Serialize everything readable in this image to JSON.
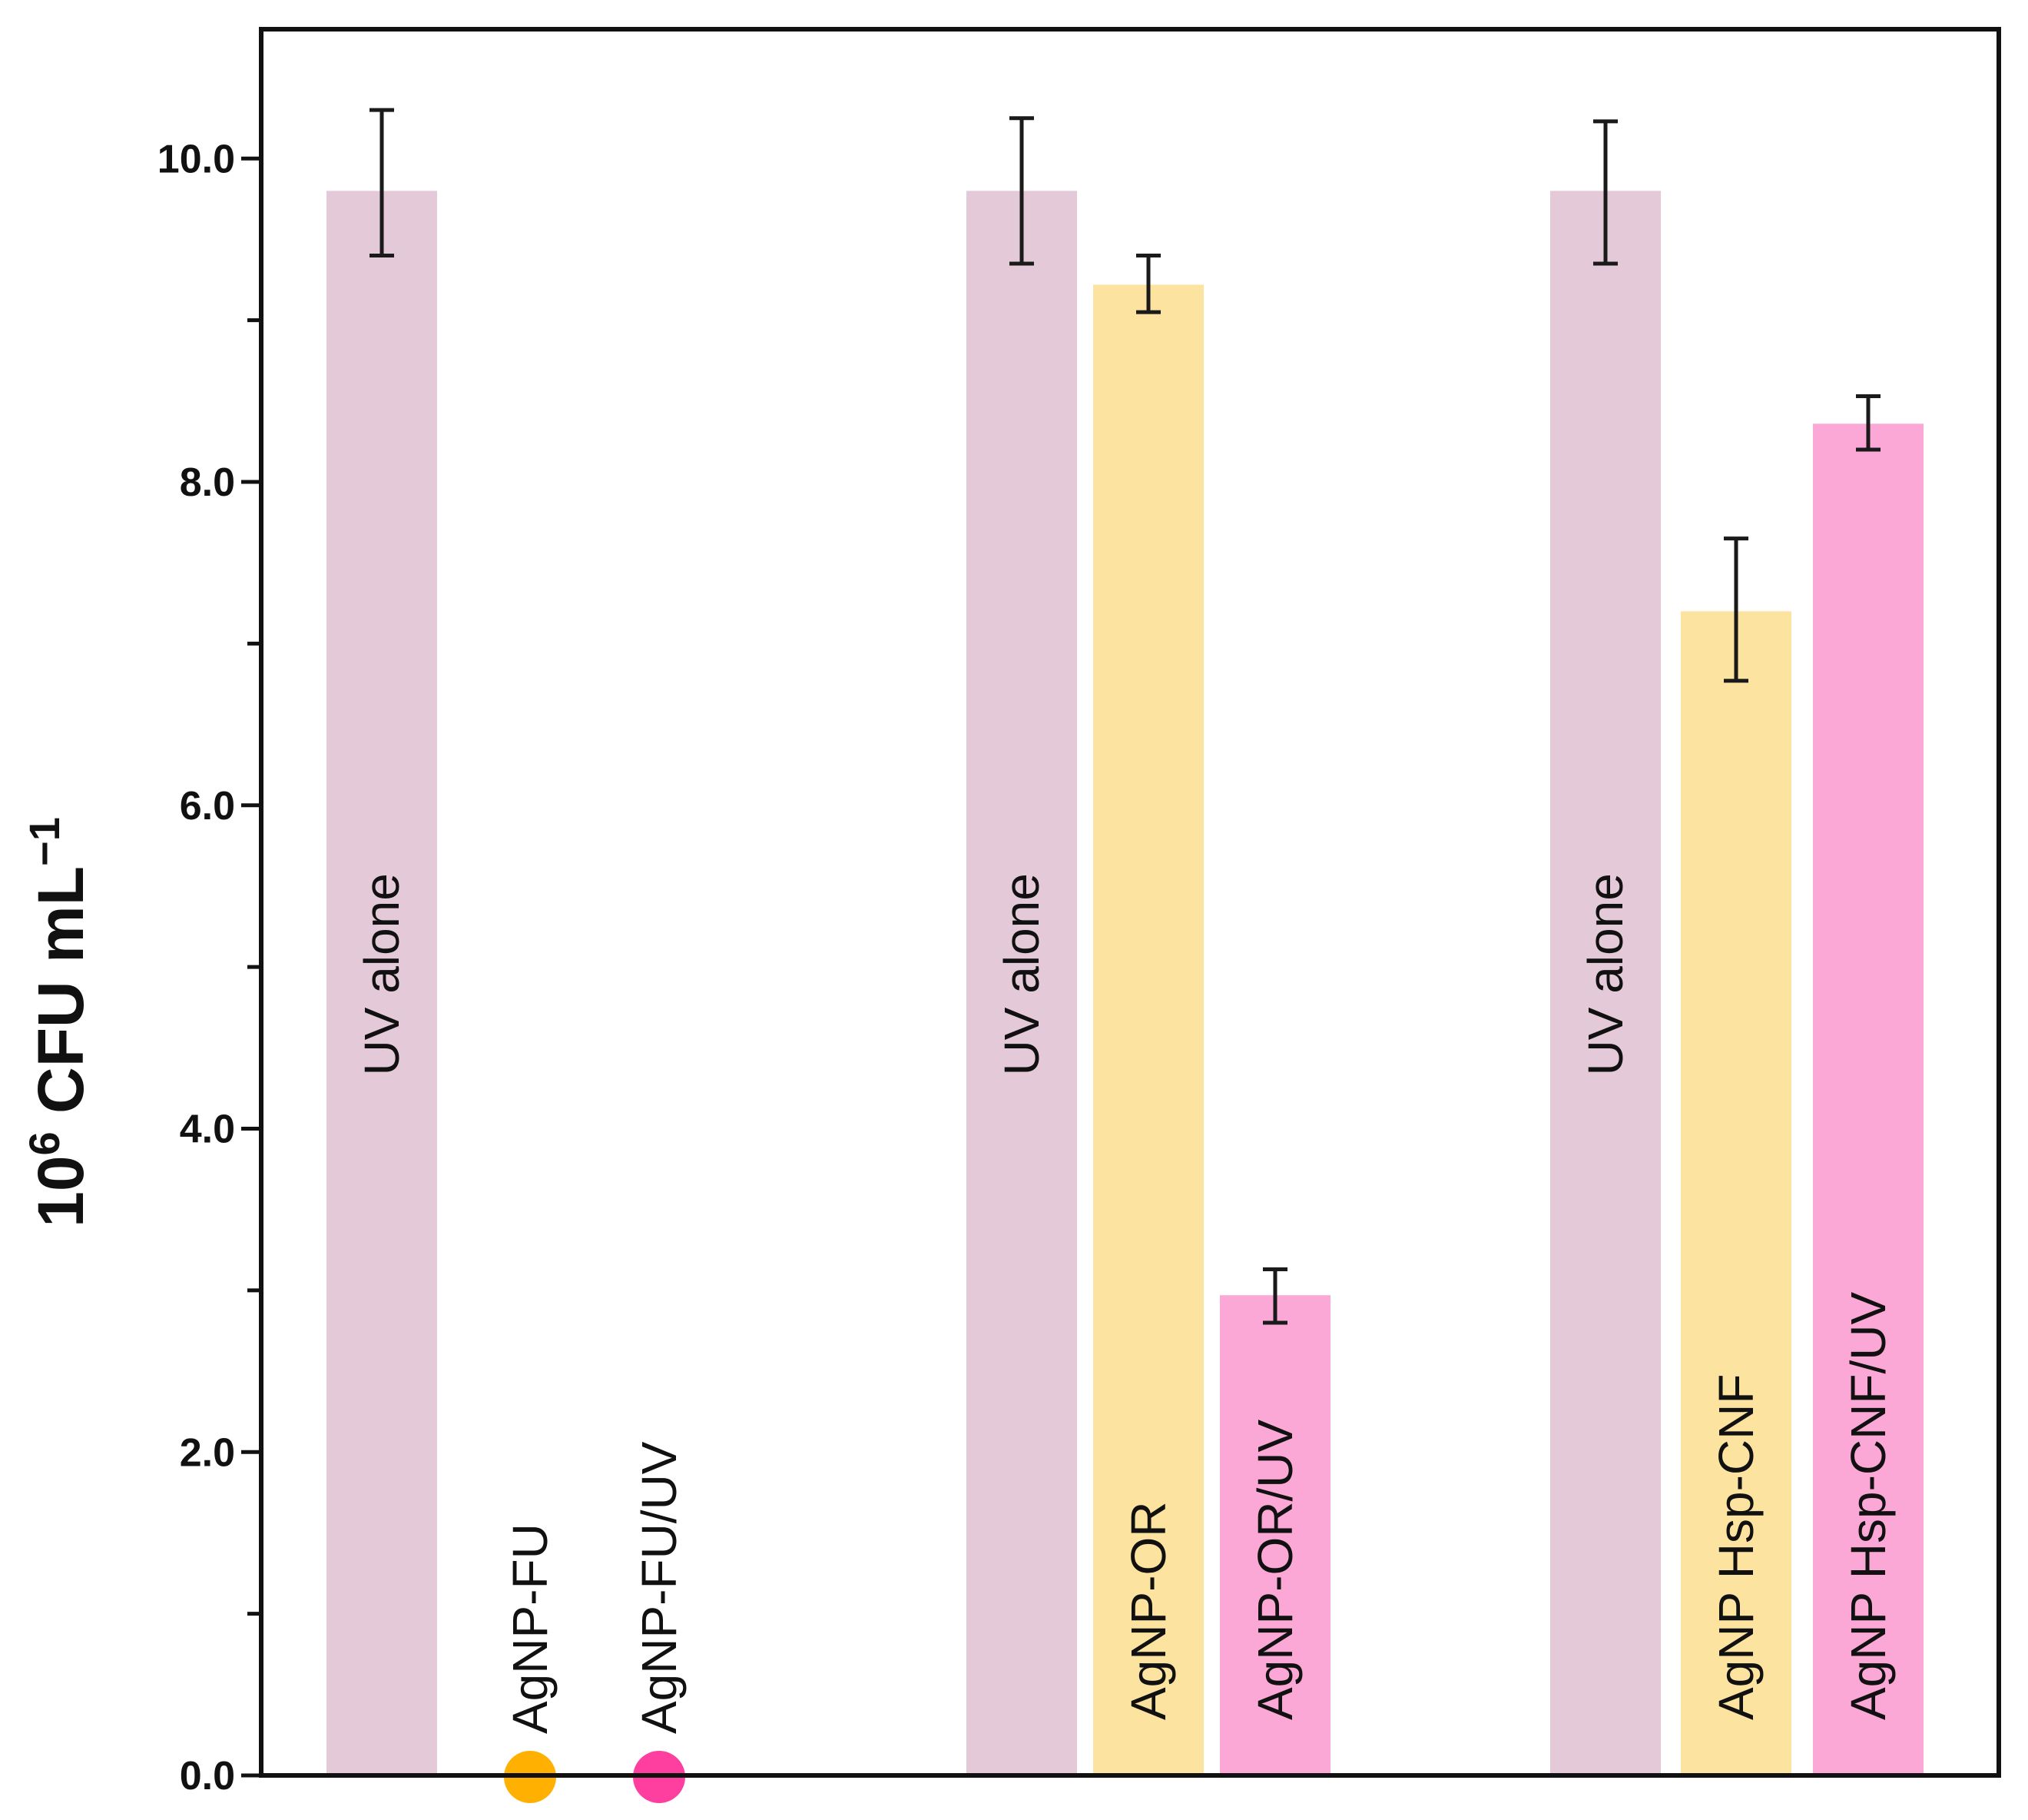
{
  "chart_data": {
    "type": "bar",
    "ylabel": {
      "base": "10",
      "exponent": "6",
      "unit_text": " CFU mL",
      "unit_exponent": "−1"
    },
    "ylim": [
      0,
      10.8
    ],
    "yticks_labeled": [
      {
        "value": 0,
        "label": "0.0"
      },
      {
        "value": 2,
        "label": "2.0"
      },
      {
        "value": 4,
        "label": "4.0"
      },
      {
        "value": 6,
        "label": "6.0"
      },
      {
        "value": 8,
        "label": "8.0"
      },
      {
        "value": 10,
        "label": "10.0"
      }
    ],
    "yticks_minor": [
      1,
      3,
      5,
      7,
      9
    ],
    "grid": false,
    "colors": {
      "uv_alone": "#e4c9d8",
      "agnp": "#fce3a0",
      "agnp_uv": "#fba8d6",
      "marker_agnp": "#ffb000",
      "marker_agnp_uv": "#ff3fa0",
      "axis": "#111111"
    },
    "bars": [
      {
        "label": "UV alone",
        "value": 9.8,
        "error_low": 9.4,
        "error_high": 10.3,
        "color_key": "uv_alone",
        "label_pos": "middle"
      },
      {
        "label": "AgNP-FU",
        "value": 0,
        "error_low": null,
        "error_high": null,
        "color_key": "marker_agnp",
        "marker": true
      },
      {
        "label": "AgNP-FU/UV",
        "value": 0,
        "error_low": null,
        "error_high": null,
        "color_key": "marker_agnp_uv",
        "marker": true
      },
      {
        "label": "UV alone",
        "value": 9.8,
        "error_low": 9.35,
        "error_high": 10.25,
        "color_key": "uv_alone",
        "label_pos": "middle"
      },
      {
        "label": "AgNP-OR",
        "value": 9.22,
        "error_low": 9.05,
        "error_high": 9.4,
        "color_key": "agnp",
        "label_pos": "bottom"
      },
      {
        "label": "AgNP-OR/UV",
        "value": 2.97,
        "error_low": 2.8,
        "error_high": 3.13,
        "color_key": "agnp_uv",
        "label_pos": "bottom"
      },
      {
        "label": "UV alone",
        "value": 9.8,
        "error_low": 9.35,
        "error_high": 10.23,
        "color_key": "uv_alone",
        "label_pos": "middle"
      },
      {
        "label": "AgNP Hsp-CNF",
        "value": 7.2,
        "error_low": 6.77,
        "error_high": 7.65,
        "color_key": "agnp",
        "label_pos": "bottom"
      },
      {
        "label": "AgNP Hsp-CNF/UV",
        "value": 8.36,
        "error_low": 8.2,
        "error_high": 8.53,
        "color_key": "agnp_uv",
        "label_pos": "bottom"
      }
    ]
  }
}
